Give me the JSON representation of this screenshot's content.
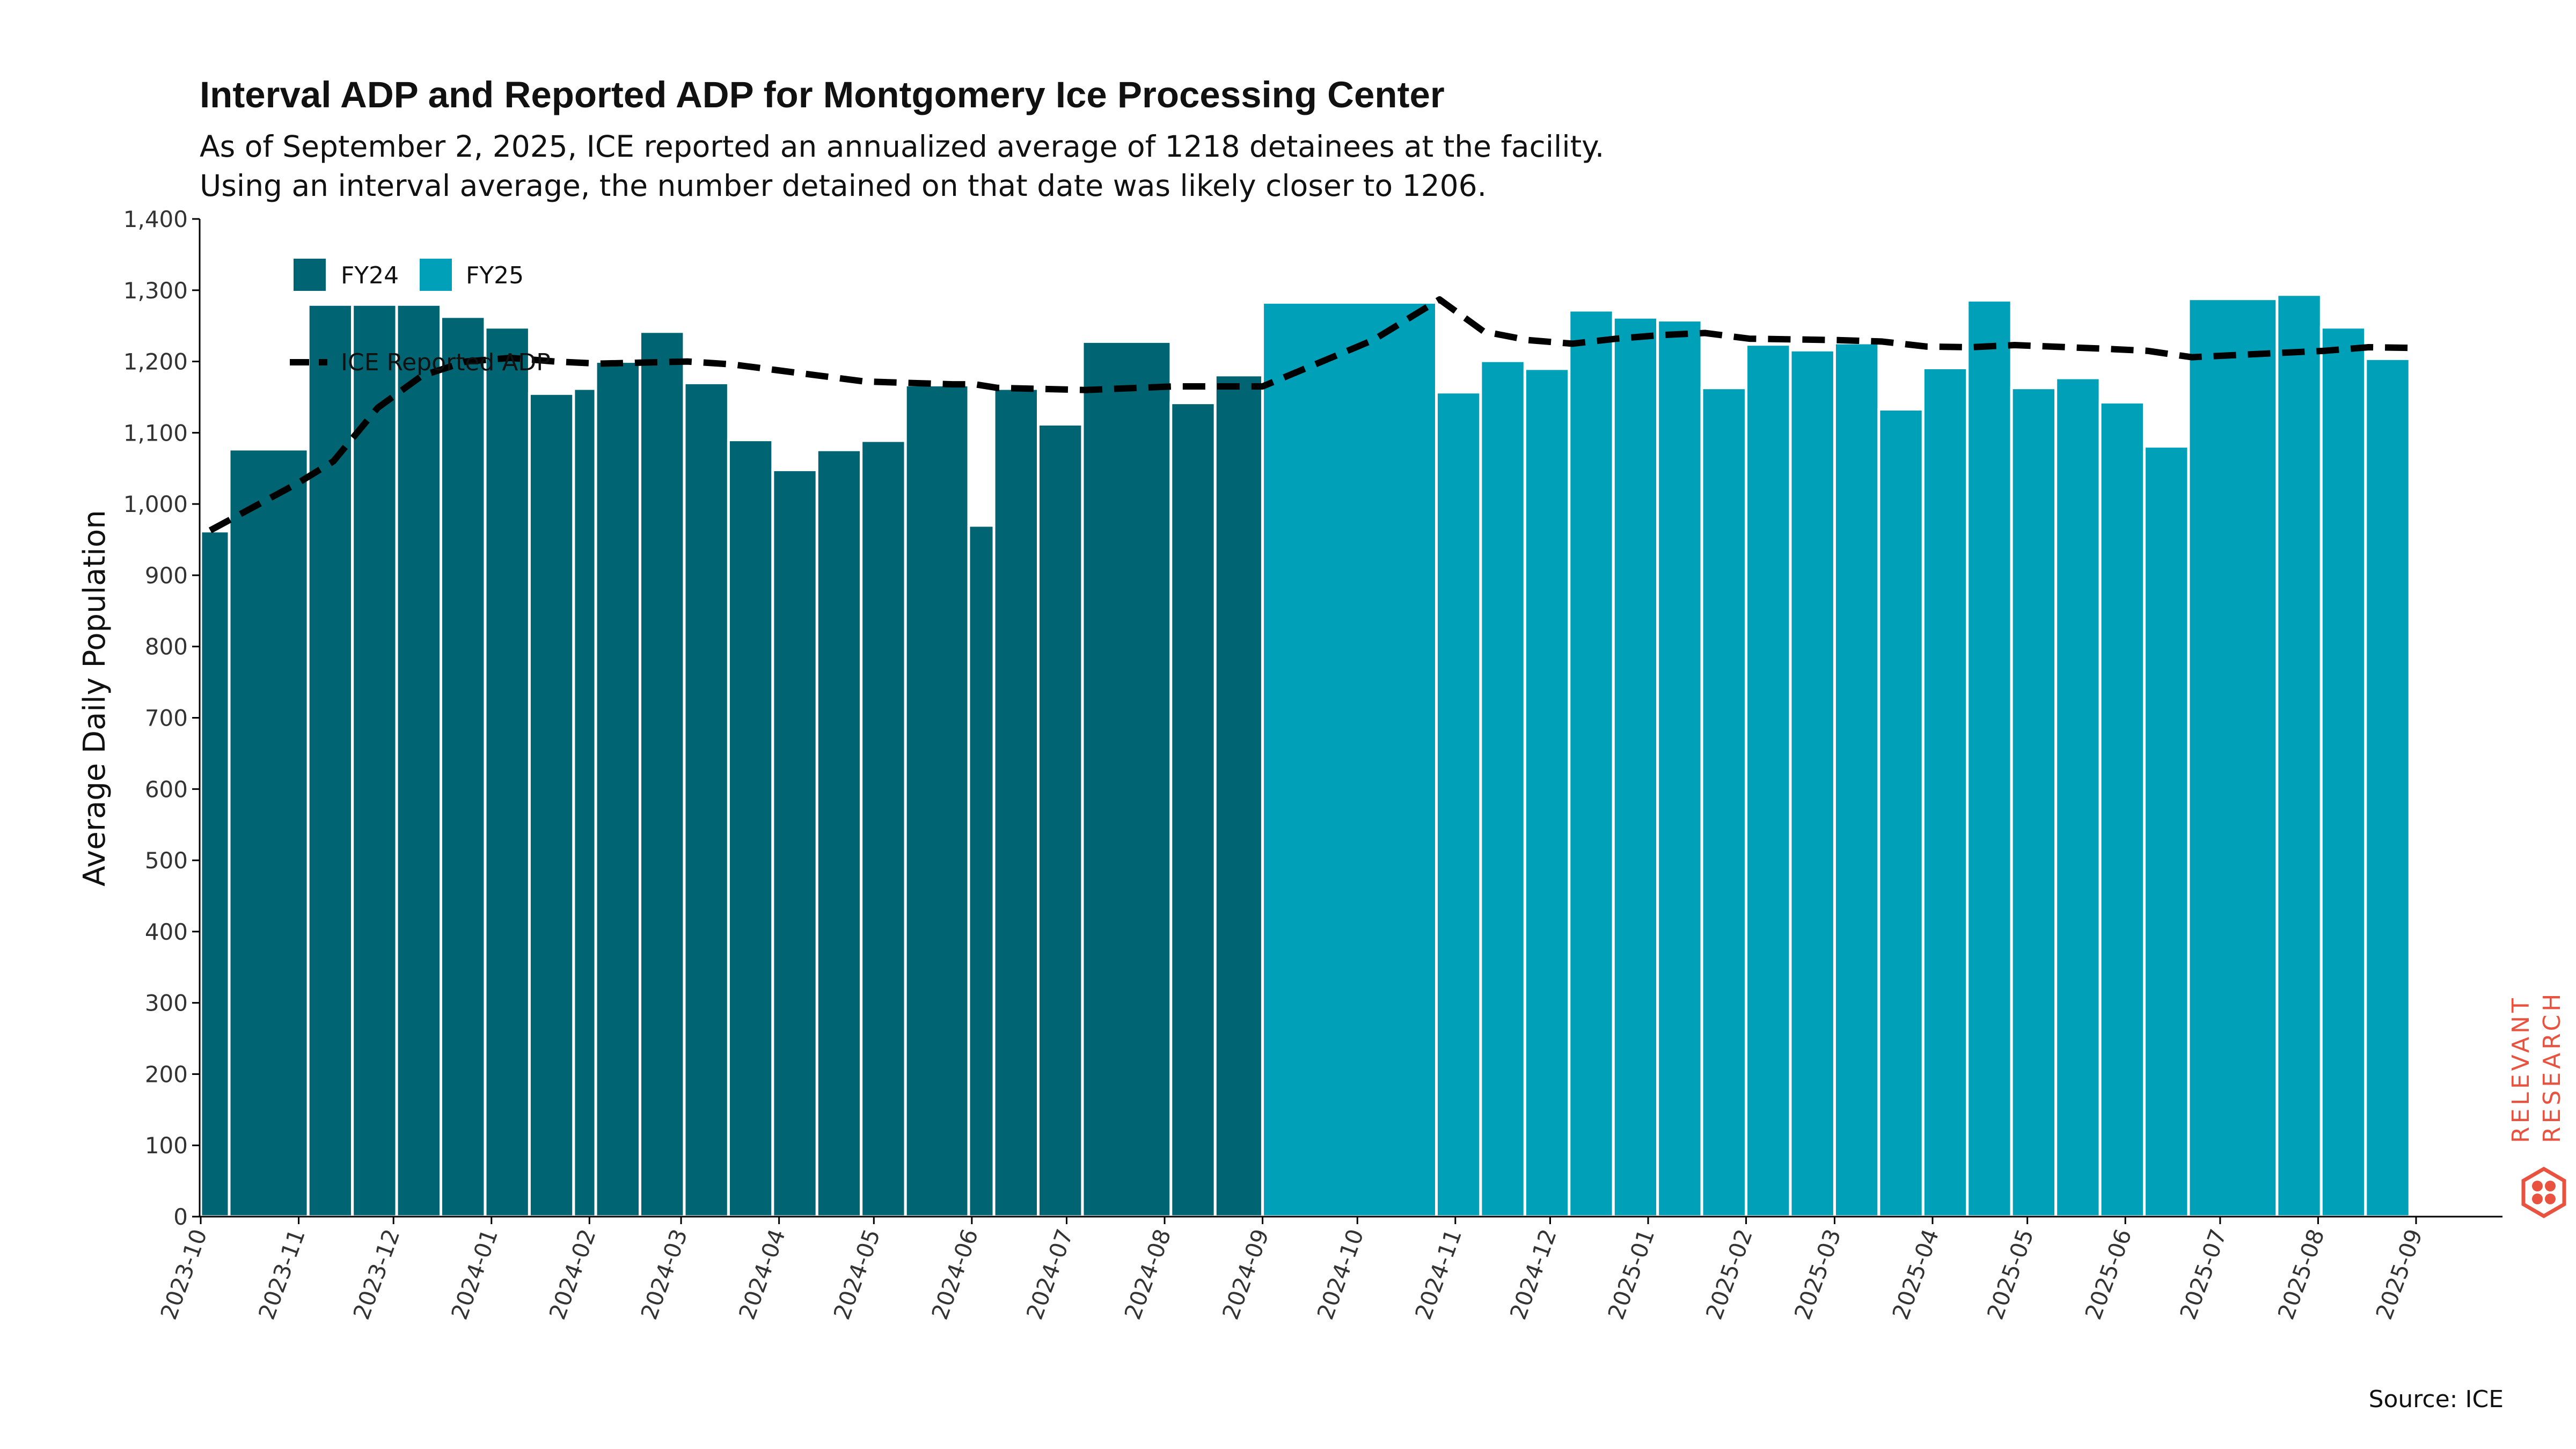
{
  "chart_data": {
    "type": "bar",
    "title": "Interval ADP and Reported ADP for Montgomery Ice Processing Center",
    "subtitle_lines": [
      "As of September 2, 2025, ICE reported an annualized average of 1218 detainees at the facility.",
      "Using an interval average, the number detained on that date was likely closer to 1206."
    ],
    "ylabel": "Average Daily Population",
    "xlabel": "",
    "ylim": [
      0,
      1400
    ],
    "y_ticks": [
      "0",
      "100",
      "200",
      "300",
      "400",
      "500",
      "600",
      "700",
      "800",
      "900",
      "1,000",
      "1,100",
      "1,200",
      "1,300",
      "1,400"
    ],
    "y_tick_values": [
      0,
      100,
      200,
      300,
      400,
      500,
      600,
      700,
      800,
      900,
      1000,
      1100,
      1200,
      1300,
      1400
    ],
    "x_ticks": [
      "2023-10",
      "2023-11",
      "2023-12",
      "2024-01",
      "2024-02",
      "2024-03",
      "2024-04",
      "2024-05",
      "2024-06",
      "2024-07",
      "2024-08",
      "2024-09",
      "2024-10",
      "2024-11",
      "2024-12",
      "2025-01",
      "2025-02",
      "2025-03",
      "2025-04",
      "2025-05",
      "2025-06",
      "2025-07",
      "2025-08",
      "2025-09"
    ],
    "grid": false,
    "legend": {
      "placement": "top-left",
      "entries": [
        {
          "label": "FY24",
          "color": "#006472"
        },
        {
          "label": "FY25",
          "color": "#00a0b8"
        },
        {
          "label": "ICE Reported ADP",
          "style": "dashed-line",
          "color": "#000000"
        }
      ]
    },
    "series": [
      {
        "name": "FY24",
        "color": "#006472",
        "bars": [
          {
            "start": "2023-10-01",
            "end": "2023-10-10",
            "value": 962
          },
          {
            "start": "2023-10-10",
            "end": "2023-11-04",
            "value": 1077
          },
          {
            "start": "2023-11-04",
            "end": "2023-11-18",
            "value": 1280
          },
          {
            "start": "2023-11-18",
            "end": "2023-12-02",
            "value": 1280
          },
          {
            "start": "2023-12-02",
            "end": "2023-12-16",
            "value": 1280
          },
          {
            "start": "2023-12-16",
            "end": "2023-12-30",
            "value": 1263
          },
          {
            "start": "2023-12-30",
            "end": "2024-01-13",
            "value": 1248
          },
          {
            "start": "2024-01-13",
            "end": "2024-01-27",
            "value": 1155
          },
          {
            "start": "2024-01-27",
            "end": "2024-02-03",
            "value": 1162
          },
          {
            "start": "2024-02-03",
            "end": "2024-02-17",
            "value": 1200
          },
          {
            "start": "2024-02-17",
            "end": "2024-03-02",
            "value": 1242
          },
          {
            "start": "2024-03-02",
            "end": "2024-03-16",
            "value": 1170
          },
          {
            "start": "2024-03-16",
            "end": "2024-03-30",
            "value": 1090
          },
          {
            "start": "2024-03-30",
            "end": "2024-04-13",
            "value": 1048
          },
          {
            "start": "2024-04-13",
            "end": "2024-04-27",
            "value": 1076
          },
          {
            "start": "2024-04-27",
            "end": "2024-05-11",
            "value": 1089
          },
          {
            "start": "2024-05-11",
            "end": "2024-05-31",
            "value": 1167
          },
          {
            "start": "2024-05-31",
            "end": "2024-06-08",
            "value": 970
          },
          {
            "start": "2024-06-08",
            "end": "2024-06-22",
            "value": 1162
          },
          {
            "start": "2024-06-22",
            "end": "2024-07-06",
            "value": 1112
          },
          {
            "start": "2024-07-06",
            "end": "2024-08-03",
            "value": 1228
          },
          {
            "start": "2024-08-03",
            "end": "2024-08-17",
            "value": 1142
          },
          {
            "start": "2024-08-17",
            "end": "2024-09-01",
            "value": 1181
          }
        ]
      },
      {
        "name": "FY25",
        "color": "#00a0b8",
        "bars": [
          {
            "start": "2024-09-01",
            "end": "2024-10-26",
            "value": 1283
          },
          {
            "start": "2024-10-26",
            "end": "2024-11-09",
            "value": 1157
          },
          {
            "start": "2024-11-09",
            "end": "2024-11-23",
            "value": 1201
          },
          {
            "start": "2024-11-23",
            "end": "2024-12-07",
            "value": 1190
          },
          {
            "start": "2024-12-07",
            "end": "2024-12-21",
            "value": 1272
          },
          {
            "start": "2024-12-21",
            "end": "2025-01-04",
            "value": 1262
          },
          {
            "start": "2025-01-04",
            "end": "2025-01-18",
            "value": 1258
          },
          {
            "start": "2025-01-18",
            "end": "2025-02-01",
            "value": 1163
          },
          {
            "start": "2025-02-01",
            "end": "2025-02-15",
            "value": 1224
          },
          {
            "start": "2025-02-15",
            "end": "2025-03-01",
            "value": 1216
          },
          {
            "start": "2025-03-01",
            "end": "2025-03-15",
            "value": 1226
          },
          {
            "start": "2025-03-15",
            "end": "2025-03-29",
            "value": 1133
          },
          {
            "start": "2025-03-29",
            "end": "2025-04-12",
            "value": 1191
          },
          {
            "start": "2025-04-12",
            "end": "2025-04-26",
            "value": 1286
          },
          {
            "start": "2025-04-26",
            "end": "2025-05-10",
            "value": 1163
          },
          {
            "start": "2025-05-10",
            "end": "2025-05-24",
            "value": 1177
          },
          {
            "start": "2025-05-24",
            "end": "2025-06-07",
            "value": 1143
          },
          {
            "start": "2025-06-07",
            "end": "2025-06-21",
            "value": 1081
          },
          {
            "start": "2025-06-21",
            "end": "2025-07-19",
            "value": 1288
          },
          {
            "start": "2025-07-19",
            "end": "2025-08-02",
            "value": 1294
          },
          {
            "start": "2025-08-02",
            "end": "2025-08-16",
            "value": 1248
          },
          {
            "start": "2025-08-16",
            "end": "2025-08-30",
            "value": 1204
          }
        ]
      },
      {
        "name": "ICE Reported ADP",
        "type": "line",
        "style": "dashed",
        "color": "#000000",
        "points": [
          {
            "date": "2023-10-04",
            "value": 963
          },
          {
            "date": "2023-11-01",
            "value": 1030
          },
          {
            "date": "2023-11-12",
            "value": 1060
          },
          {
            "date": "2023-11-26",
            "value": 1135
          },
          {
            "date": "2023-12-10",
            "value": 1180
          },
          {
            "date": "2023-12-24",
            "value": 1200
          },
          {
            "date": "2024-01-07",
            "value": 1205
          },
          {
            "date": "2024-01-21",
            "value": 1200
          },
          {
            "date": "2024-02-04",
            "value": 1197
          },
          {
            "date": "2024-03-03",
            "value": 1200
          },
          {
            "date": "2024-03-17",
            "value": 1196
          },
          {
            "date": "2024-03-31",
            "value": 1188
          },
          {
            "date": "2024-04-28",
            "value": 1172
          },
          {
            "date": "2024-05-26",
            "value": 1168
          },
          {
            "date": "2024-06-02",
            "value": 1168
          },
          {
            "date": "2024-06-09",
            "value": 1163
          },
          {
            "date": "2024-07-07",
            "value": 1160
          },
          {
            "date": "2024-08-04",
            "value": 1165
          },
          {
            "date": "2024-09-01",
            "value": 1165
          },
          {
            "date": "2024-10-06",
            "value": 1230
          },
          {
            "date": "2024-10-27",
            "value": 1287
          },
          {
            "date": "2024-11-10",
            "value": 1242
          },
          {
            "date": "2024-11-24",
            "value": 1230
          },
          {
            "date": "2024-12-08",
            "value": 1225
          },
          {
            "date": "2024-12-22",
            "value": 1232
          },
          {
            "date": "2025-01-05",
            "value": 1237
          },
          {
            "date": "2025-01-19",
            "value": 1240
          },
          {
            "date": "2025-02-02",
            "value": 1232
          },
          {
            "date": "2025-03-02",
            "value": 1230
          },
          {
            "date": "2025-03-16",
            "value": 1228
          },
          {
            "date": "2025-03-30",
            "value": 1221
          },
          {
            "date": "2025-04-13",
            "value": 1220
          },
          {
            "date": "2025-04-27",
            "value": 1223
          },
          {
            "date": "2025-05-25",
            "value": 1218
          },
          {
            "date": "2025-06-08",
            "value": 1215
          },
          {
            "date": "2025-06-22",
            "value": 1206
          },
          {
            "date": "2025-07-20",
            "value": 1212
          },
          {
            "date": "2025-08-03",
            "value": 1215
          },
          {
            "date": "2025-08-17",
            "value": 1220
          },
          {
            "date": "2025-08-31",
            "value": 1219
          }
        ]
      }
    ]
  },
  "source": "Source: ICE",
  "brand": {
    "line1": "RELEVANT",
    "line2": "RESEARCH",
    "color": "#e8523f"
  }
}
